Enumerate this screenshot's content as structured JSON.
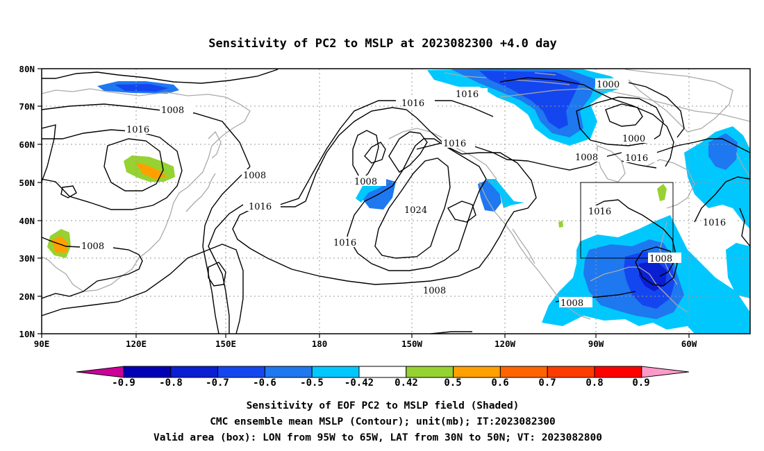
{
  "title": "Sensitivity of PC2 to MSLP at 2023082300 +4.0 day",
  "lat_ticks": [
    "80N",
    "70N",
    "60N",
    "50N",
    "40N",
    "30N",
    "20N",
    "10N"
  ],
  "lon_ticks": [
    "90E",
    "120E",
    "150E",
    "180",
    "150W",
    "120W",
    "90W",
    "60W"
  ],
  "contour_labels": [
    {
      "id": "c1",
      "text": "1008"
    },
    {
      "id": "c2",
      "text": "1016"
    },
    {
      "id": "c3",
      "text": "1008"
    },
    {
      "id": "c4",
      "text": "1008"
    },
    {
      "id": "c5",
      "text": "1016"
    },
    {
      "id": "c6",
      "text": "1016"
    },
    {
      "id": "c7",
      "text": "1008"
    },
    {
      "id": "c8",
      "text": "1016"
    },
    {
      "id": "c9",
      "text": "1016"
    },
    {
      "id": "c10",
      "text": "1024"
    },
    {
      "id": "c11",
      "text": "1016"
    },
    {
      "id": "c12",
      "text": "1000"
    },
    {
      "id": "c13",
      "text": "1000"
    },
    {
      "id": "c14",
      "text": "1008"
    },
    {
      "id": "c15",
      "text": "1016"
    },
    {
      "id": "c16",
      "text": "1016"
    },
    {
      "id": "c17",
      "text": "1008"
    },
    {
      "id": "c18",
      "text": "1008"
    },
    {
      "id": "c19",
      "text": "1016"
    },
    {
      "id": "c20",
      "text": "1008"
    }
  ],
  "colorbar": {
    "labels": [
      "-0.9",
      "-0.8",
      "-0.7",
      "-0.6",
      "-0.5",
      "-0.42",
      "0.42",
      "0.5",
      "0.6",
      "0.7",
      "0.8",
      "0.9"
    ],
    "colors": [
      "#cc0099",
      "#0000b4",
      "#0a1ed2",
      "#1446f0",
      "#1e78f0",
      "#00c8ff",
      "#ffffff",
      "#96d232",
      "#ffa000",
      "#ff6400",
      "#ff3c00",
      "#ff0000",
      "#ff9ac8"
    ]
  },
  "captions": [
    "Sensitivity of EOF PC2 to MSLP field (Shaded)",
    "CMC ensemble mean MSLP (Contour); unit(mb); IT:2023082300",
    "Valid area (box): LON from 95W to 65W, LAT from 30N to 50N; VT: 2023082800"
  ]
}
